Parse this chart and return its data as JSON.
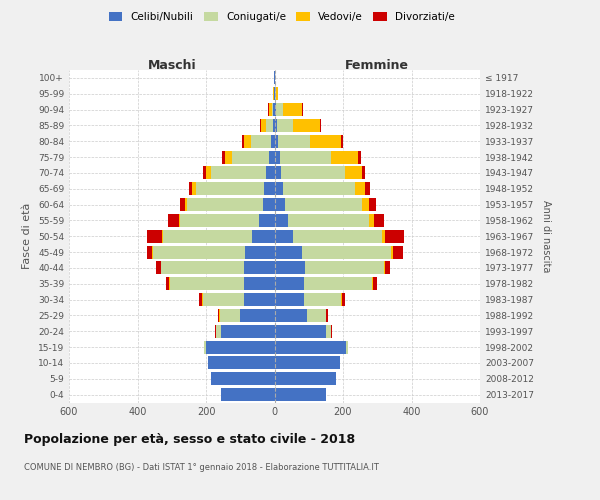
{
  "age_groups": [
    "0-4",
    "5-9",
    "10-14",
    "15-19",
    "20-24",
    "25-29",
    "30-34",
    "35-39",
    "40-44",
    "45-49",
    "50-54",
    "55-59",
    "60-64",
    "65-69",
    "70-74",
    "75-79",
    "80-84",
    "85-89",
    "90-94",
    "95-99",
    "100+"
  ],
  "birth_years": [
    "2013-2017",
    "2008-2012",
    "2003-2007",
    "1998-2002",
    "1993-1997",
    "1988-1992",
    "1983-1987",
    "1978-1982",
    "1973-1977",
    "1968-1972",
    "1963-1967",
    "1958-1962",
    "1953-1957",
    "1948-1952",
    "1943-1947",
    "1938-1942",
    "1933-1937",
    "1928-1932",
    "1923-1927",
    "1918-1922",
    "≤ 1917"
  ],
  "maschi_celibe": [
    155,
    185,
    195,
    200,
    155,
    100,
    90,
    90,
    90,
    85,
    65,
    45,
    35,
    30,
    25,
    15,
    10,
    5,
    3,
    1,
    1
  ],
  "maschi_coniugato": [
    0,
    0,
    0,
    5,
    15,
    60,
    120,
    215,
    240,
    270,
    260,
    230,
    220,
    200,
    160,
    110,
    60,
    20,
    5,
    1,
    0
  ],
  "maschi_vedovo": [
    0,
    0,
    0,
    0,
    1,
    1,
    1,
    2,
    2,
    2,
    3,
    5,
    5,
    10,
    15,
    20,
    20,
    15,
    8,
    1,
    0
  ],
  "maschi_divorziato": [
    0,
    0,
    0,
    0,
    2,
    5,
    8,
    10,
    15,
    15,
    45,
    30,
    15,
    10,
    10,
    8,
    5,
    3,
    2,
    0,
    0
  ],
  "femmine_celibe": [
    150,
    180,
    190,
    210,
    150,
    95,
    85,
    85,
    90,
    80,
    55,
    40,
    30,
    25,
    20,
    15,
    10,
    8,
    5,
    2,
    1
  ],
  "femmine_coniugato": [
    0,
    0,
    0,
    5,
    15,
    55,
    110,
    200,
    230,
    260,
    260,
    235,
    225,
    210,
    185,
    150,
    95,
    45,
    20,
    2,
    0
  ],
  "femmine_vedovo": [
    0,
    0,
    0,
    0,
    1,
    1,
    2,
    3,
    3,
    5,
    8,
    15,
    20,
    30,
    50,
    80,
    90,
    80,
    55,
    5,
    1
  ],
  "femmine_divorziato": [
    0,
    0,
    0,
    0,
    2,
    5,
    8,
    10,
    15,
    30,
    55,
    30,
    20,
    15,
    10,
    8,
    5,
    3,
    2,
    0,
    0
  ],
  "colors": {
    "celibe": "#4472c4",
    "coniugato": "#c5d9a0",
    "vedovo": "#ffc000",
    "divorziato": "#cc0000"
  },
  "title": "Popolazione per età, sesso e stato civile - 2018",
  "subtitle": "COMUNE DI NEMBRO (BG) - Dati ISTAT 1° gennaio 2018 - Elaborazione TUTTITALIA.IT",
  "xlabel_left": "Maschi",
  "xlabel_right": "Femmine",
  "ylabel": "Fasce di età",
  "ylabel_right": "Anni di nascita",
  "xlim": 600,
  "bg_color": "#f0f0f0",
  "plot_bg_color": "#ffffff",
  "legend_labels": [
    "Celibi/Nubili",
    "Coniugati/e",
    "Vedovi/e",
    "Divorziati/e"
  ]
}
